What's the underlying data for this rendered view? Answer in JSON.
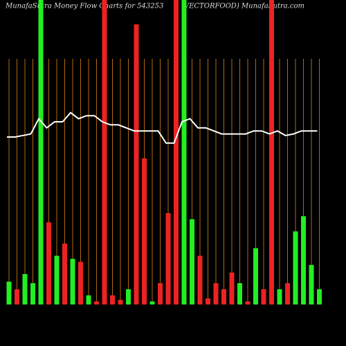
{
  "chart_data": {
    "type": "bar",
    "title": "MunafaSutra  Money Flow  Charts for 543253",
    "subtitle": "(VECTORFOOD) MunafaSutra.com",
    "ylim": [
      0,
      100
    ],
    "grid": true,
    "grid_color": "#b06a10",
    "background": "#000000",
    "series": [
      {
        "name": "Money Flow",
        "colors": [
          "#22ee22",
          "#ee2222",
          "#22ee22",
          "#22ee22",
          "#22ee22",
          "#ee2222",
          "#22ee22",
          "#ee2222",
          "#22ee22",
          "#ee2222",
          "#22ee22",
          "#ee2222",
          "#ee2222",
          "#ee2222",
          "#ee2222",
          "#22ee22",
          "#ee2222",
          "#ee2222",
          "#22ee22",
          "#ee2222",
          "#ee2222",
          "#ee2222",
          "#22ee22",
          "#22ee22",
          "#ee2222",
          "#ee2222",
          "#ee2222",
          "#ee2222",
          "#ee2222",
          "#22ee22",
          "#ee2222",
          "#22ee22",
          "#ee2222",
          "#ee2222",
          "#22ee22",
          "#ee2222",
          "#22ee22",
          "#22ee22",
          "#22ee22",
          "#22ee22"
        ],
        "values": [
          7.5,
          5,
          10,
          7,
          100,
          27,
          16,
          20,
          15,
          14,
          3,
          1,
          100,
          3,
          1.5,
          5,
          92,
          48,
          1,
          7,
          30,
          100,
          100,
          28,
          16,
          2,
          7,
          5,
          10.5,
          7,
          1,
          18.5,
          5,
          100,
          5,
          7,
          24,
          29,
          13,
          5
        ]
      },
      {
        "name": "Price",
        "color": "#ffffff",
        "values": [
          55,
          55,
          55.5,
          56,
          61,
          58,
          60,
          60,
          63,
          61,
          62,
          62,
          60,
          59,
          59,
          58,
          57,
          57,
          57,
          57,
          53,
          53,
          60,
          61,
          58,
          58,
          57,
          56,
          56,
          56,
          56,
          57,
          57,
          56,
          57,
          55.5,
          56,
          57,
          57,
          57
        ]
      }
    ]
  }
}
